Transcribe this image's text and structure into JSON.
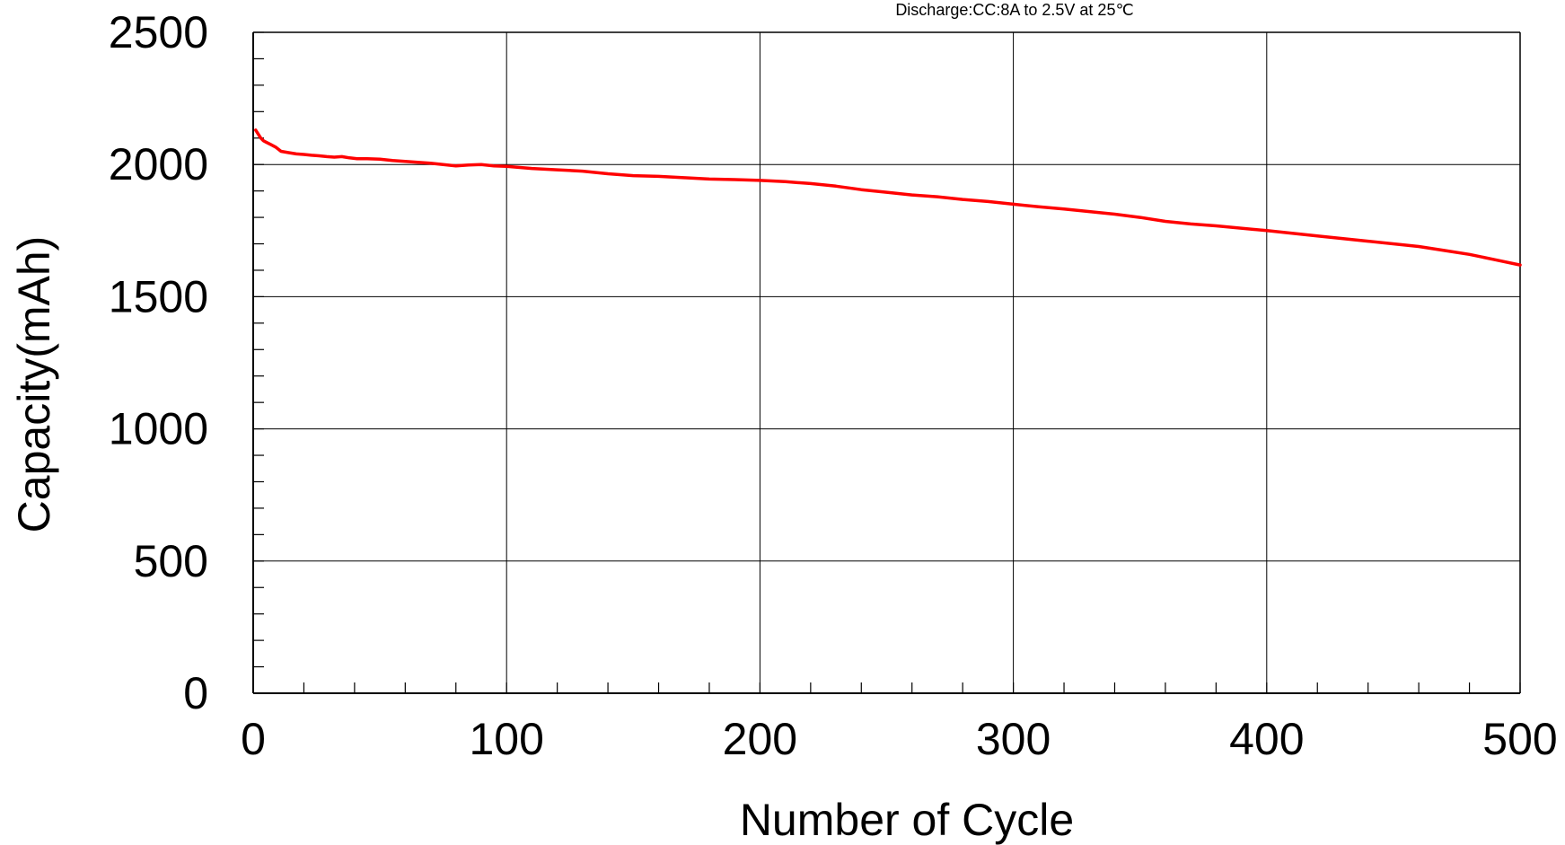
{
  "chart_data": {
    "type": "line",
    "title": "Discharge:CC:8A to 2.5V at 25℃",
    "xlabel": "Number of Cycle",
    "ylabel": "Capacity(mAh)",
    "xlim": [
      0,
      500
    ],
    "ylim": [
      0,
      2500
    ],
    "x_ticks": [
      0,
      100,
      200,
      300,
      400,
      500
    ],
    "y_ticks": [
      0,
      500,
      1000,
      1500,
      2000,
      2500
    ],
    "x_minor_step": 20,
    "y_minor_step": 100,
    "grid": true,
    "colors": {
      "series": "#ff0000",
      "grid": "#000000",
      "axis": "#000000"
    },
    "series": [
      {
        "name": "",
        "x": [
          1,
          2,
          3,
          4,
          5,
          7,
          9,
          11,
          14,
          17,
          20,
          23,
          26,
          29,
          32,
          35,
          38,
          41,
          45,
          50,
          55,
          60,
          65,
          70,
          75,
          80,
          85,
          90,
          95,
          100,
          110,
          120,
          130,
          140,
          150,
          160,
          170,
          180,
          190,
          200,
          210,
          220,
          230,
          240,
          250,
          260,
          270,
          280,
          290,
          300,
          310,
          320,
          330,
          340,
          350,
          360,
          370,
          380,
          400,
          420,
          440,
          460,
          470,
          480,
          490,
          500
        ],
        "y": [
          2130,
          2115,
          2100,
          2090,
          2085,
          2075,
          2065,
          2050,
          2045,
          2040,
          2038,
          2035,
          2033,
          2030,
          2028,
          2030,
          2025,
          2022,
          2022,
          2020,
          2015,
          2012,
          2008,
          2005,
          2000,
          1995,
          1998,
          2000,
          1995,
          1993,
          1985,
          1980,
          1975,
          1965,
          1958,
          1955,
          1950,
          1945,
          1943,
          1940,
          1935,
          1928,
          1918,
          1905,
          1895,
          1885,
          1878,
          1868,
          1860,
          1850,
          1840,
          1832,
          1822,
          1812,
          1800,
          1785,
          1775,
          1768,
          1750,
          1730,
          1710,
          1690,
          1675,
          1660,
          1640,
          1620
        ]
      }
    ]
  }
}
